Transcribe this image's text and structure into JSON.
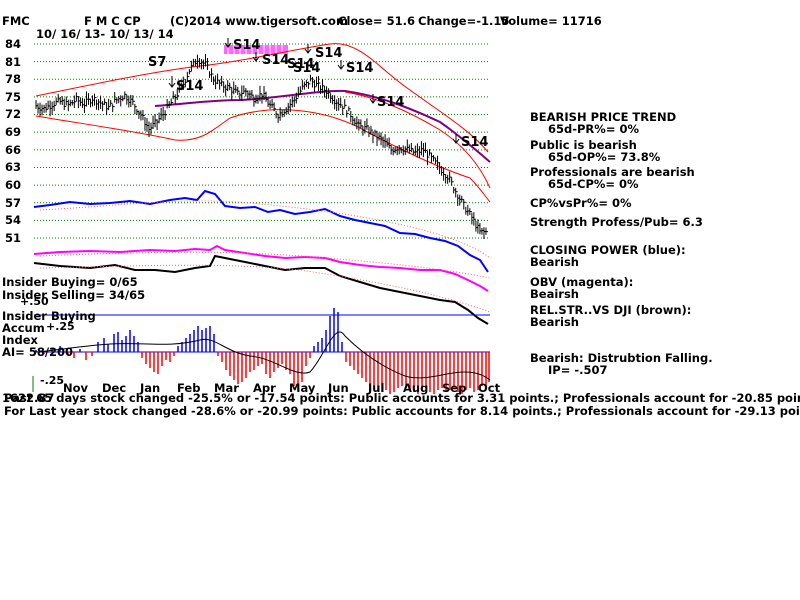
{
  "header": {
    "ticker": "FMC",
    "name": "F M C CP",
    "copyright": "(C)2014 www.tigersoft.com",
    "close": "Close= 51.6",
    "change": "Change=-1.15",
    "volume": "Volume= 11716",
    "date_range": "10/ 16/ 13- 10/ 13/ 14"
  },
  "price_axis": {
    "ticks": [
      "84",
      "81",
      "78",
      "75",
      "72",
      "69",
      "66",
      "63",
      "60",
      "57",
      "54",
      "51"
    ],
    "values": [
      84,
      81,
      78,
      75,
      72,
      69,
      66,
      63,
      60,
      57,
      54,
      51
    ]
  },
  "month_labels": [
    "Nov",
    "Dec",
    "Jan",
    "Feb",
    "Mar",
    "Apr",
    "May",
    "Jun",
    "Jul",
    "Aug",
    "Sep",
    "Oct"
  ],
  "signals": [
    "S7",
    "S14",
    "S14",
    "S14",
    "S14",
    "S14",
    "S14",
    "S14",
    "S14",
    "S14"
  ],
  "right_panel": {
    "trend_title": "BEARISH PRICE TREND",
    "trend_pr": "65d-PR%= 0%",
    "public_title": "Public is bearish",
    "public_op": "65d-OP%= 73.8%",
    "pros_title": "Professionals are bearish",
    "pros_cp": "65d-CP%= 0%",
    "cp_vs_pr": "CP%vsPr%= 0%",
    "strength": "Strength Profess/Pub= 6.3",
    "closing_power_label": "CLOSING POWER (blue):",
    "closing_power_value": "Bearish",
    "obv_label": "OBV (magenta):",
    "obv_value": "Beairsh",
    "relstr_label": "REL.STR..VS DJI (brown):",
    "relstr_value": "Bearish",
    "ai_label": "Bearish: Distrubtion Falling.",
    "ip_value": "IP= -.507"
  },
  "left_panel": {
    "insider_buying": "Insider Buying= 0/65",
    "insider_selling": "Insider Selling= 34/65",
    "plus50": "+.50",
    "accum_title": "Insider Buying",
    "accum": "Accum",
    "plus25": "+.25",
    "index": "Index",
    "ai": "AI= 58/200",
    "minus25": "-.25"
  },
  "footer": {
    "line1": "Past 65 days stock changed -25.5% or -17.54 points:  Public accounts for  3.31 points.;  Professionals account for -20.85 points.",
    "line1_overlap": "1622.87",
    "line2": "For Last year stock changed -28.6% or -20.99 points:  Public accounts for  8.14 points.;  Professionals account for -29.13 points."
  },
  "colors": {
    "price_bars": "#000000",
    "closing_power": "#0000ff",
    "obv": "#ff00ff",
    "relative_strength": "#800000",
    "bands": "#ff0000",
    "moving_average": "#800080",
    "ai_positive": "#0000ff",
    "ai_negative": "#ff0000",
    "gridlines": "#008000"
  },
  "chart_data": {
    "type": "line",
    "title": "F M C CP",
    "x_range": [
      "2013-10-16",
      "2014-10-13"
    ],
    "ylim": [
      51,
      84
    ],
    "grid": true,
    "series": [
      {
        "name": "FMC",
        "values": [
          73.5,
          73.0,
          73.8,
          74.2,
          73.6,
          74.5,
          73.8,
          74.8,
          74.0,
          73.2,
          74.5,
          75.3,
          74.0,
          72.0,
          69.5,
          70.8,
          72.5,
          74.5,
          76.5,
          79.5,
          81.5,
          80.5,
          78.0,
          77.0,
          76.5,
          75.5,
          76.0,
          74.8,
          75.5,
          73.5,
          72.0,
          73.0,
          74.5,
          76.5,
          77.8,
          76.8,
          76.0,
          74.5,
          73.5,
          72.0,
          70.0,
          69.5,
          68.5,
          67.5,
          66.0,
          66.5,
          66.0,
          65.5,
          66.0,
          64.5,
          63.0,
          61.5,
          59.0,
          56.5,
          54.5,
          52.0
        ]
      }
    ]
  }
}
